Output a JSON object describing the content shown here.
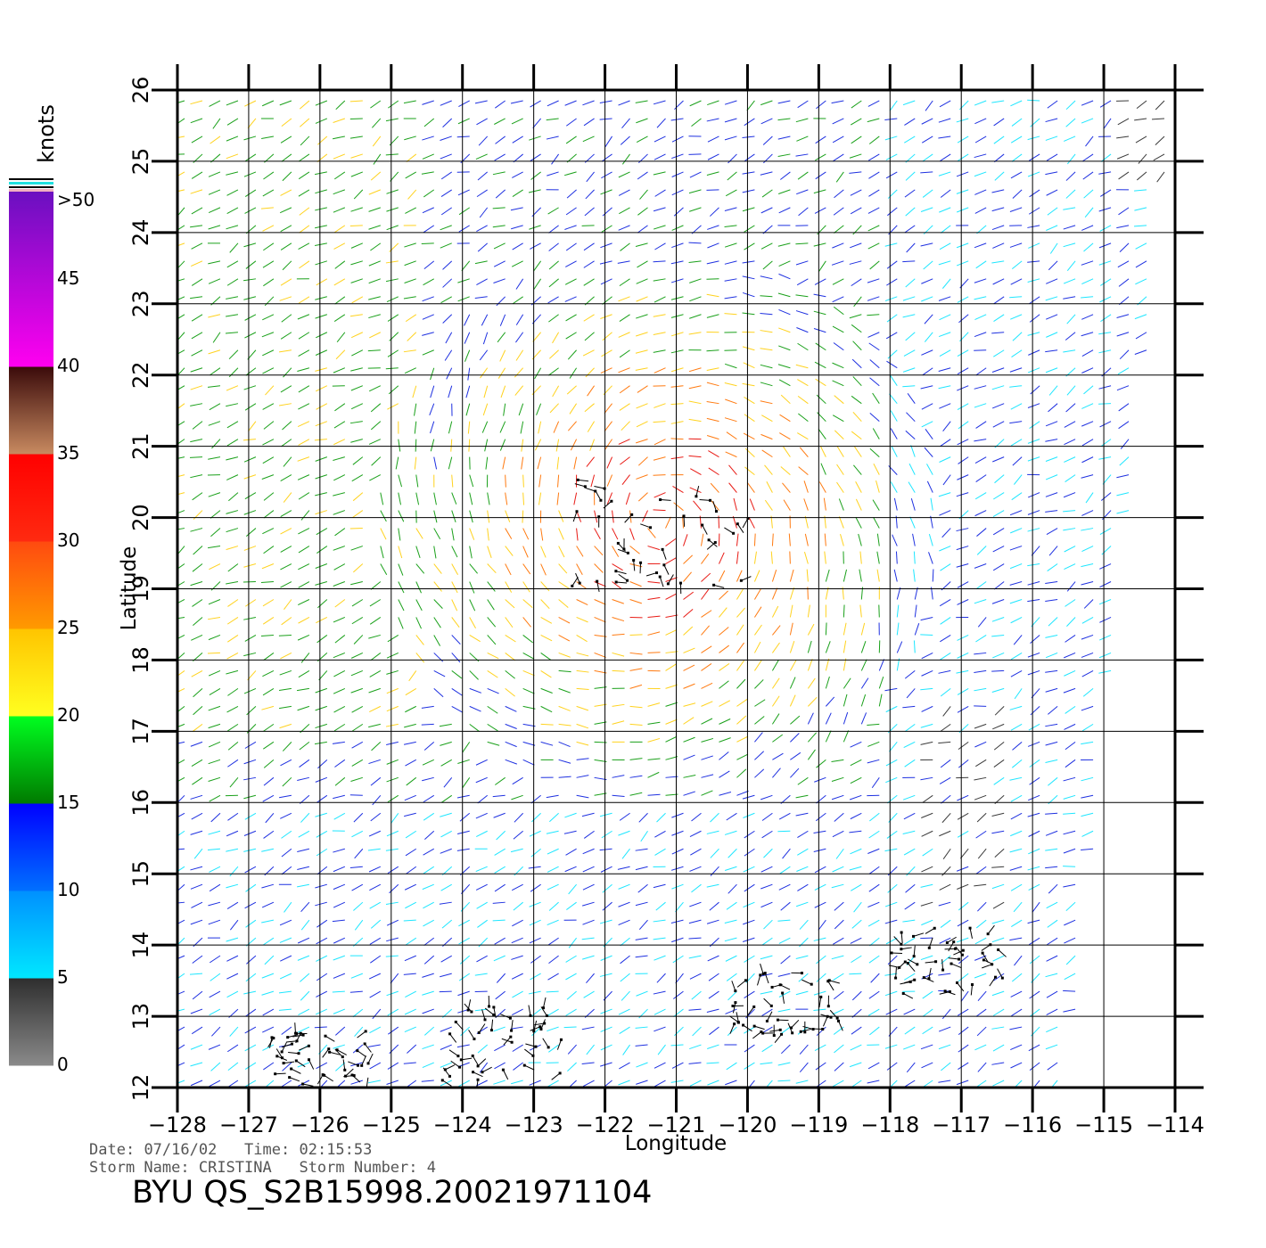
{
  "header": {
    "date_label": "Date:",
    "date": "07/16/02",
    "time_label": "Time:",
    "time": "02:15:53",
    "storm_name_label": "Storm Name:",
    "storm_name": "CRISTINA",
    "storm_number_label": "Storm Number:",
    "storm_number": "4"
  },
  "title": "BYU QS_S2B15998.20021971104",
  "colors": {
    "axis": "#000000",
    "calm": "#3a3a3a",
    "light": "#1ee6ff",
    "moderate": "#1e30e0",
    "fresh": "#1aa01a",
    "strong": "#ffd21e",
    "gale": "#ff7a10",
    "storm": "#e81a14",
    "rain_flag": "#000000"
  },
  "chart_data": {
    "type": "wind-vector-map",
    "xlabel": "Longitude",
    "ylabel": "Latitude",
    "xlim": [
      -128,
      -114
    ],
    "ylim": [
      12,
      26
    ],
    "x_ticks": [
      -128,
      -127,
      -126,
      -125,
      -124,
      -123,
      -122,
      -121,
      -120,
      -119,
      -118,
      -117,
      -116,
      -115,
      -114
    ],
    "y_ticks": [
      12,
      13,
      14,
      15,
      16,
      17,
      18,
      19,
      20,
      21,
      22,
      23,
      24,
      25,
      26
    ],
    "x_tick_labels": [
      "-128",
      "-127",
      "-126",
      "-125",
      "-124",
      "-123",
      "-122",
      "-121",
      "-120",
      "-119",
      "-118",
      "-117",
      "-116",
      "-115",
      "-114"
    ],
    "y_tick_labels": [
      "12",
      "13",
      "14",
      "15",
      "16",
      "17",
      "18",
      "19",
      "20",
      "21",
      "22",
      "23",
      "24",
      "25",
      "26"
    ],
    "grid": true,
    "colorbar": {
      "title": "knots",
      "placement": "left",
      "range": [
        0,
        50
      ],
      "labels": [
        "0",
        "5",
        "10",
        "15",
        "20",
        "25",
        "30",
        "35",
        "40",
        "45",
        ">50"
      ],
      "bands": [
        {
          "range": [
            0,
            5
          ],
          "from": "#8a8a8a",
          "to": "#2e2e2e"
        },
        {
          "range": [
            5,
            10
          ],
          "from": "#00e8ff",
          "to": "#0090ff"
        },
        {
          "range": [
            10,
            15
          ],
          "from": "#0070ff",
          "to": "#0000ff"
        },
        {
          "range": [
            15,
            20
          ],
          "from": "#007a00",
          "to": "#00ff20"
        },
        {
          "range": [
            20,
            25
          ],
          "from": "#ffff20",
          "to": "#ffc400"
        },
        {
          "range": [
            25,
            30
          ],
          "from": "#ff9a00",
          "to": "#ff4a10"
        },
        {
          "range": [
            30,
            35
          ],
          "from": "#ff2a10",
          "to": "#ff0000"
        },
        {
          "range": [
            35,
            40
          ],
          "from": "#c88a60",
          "to": "#3a0a0a"
        },
        {
          "range": [
            40,
            50
          ],
          "from": "#ff00f0",
          "to": "#6a10c0"
        }
      ]
    },
    "storm_center": {
      "lon": -121.2,
      "lat": 19.9
    },
    "storm_radius_deg": 3.3,
    "vector_spacing_deg": 0.25,
    "swath_edge_lon_bottom": -115.5,
    "swath_edge_lon_top": -114
  }
}
